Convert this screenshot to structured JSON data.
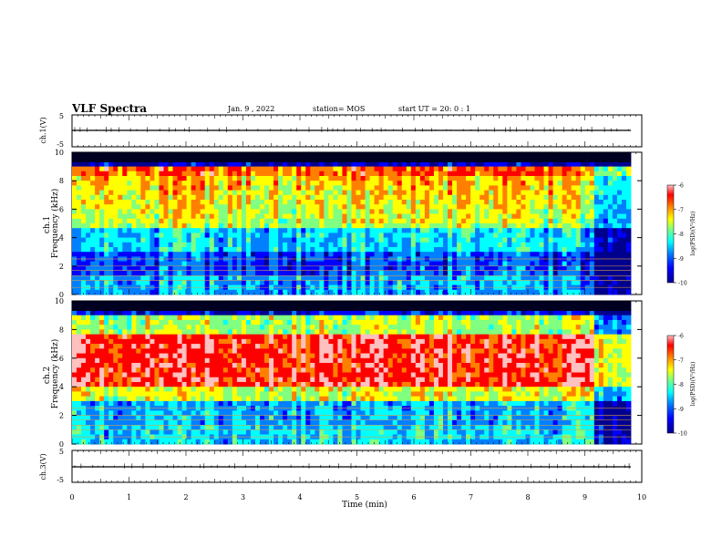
{
  "header": {
    "title": "VLF Spectra",
    "date": "Jan. 9 , 2022",
    "station": "station= MOS",
    "start_ut": "start UT =  20: 0 : 1"
  },
  "chart_data": [
    {
      "type": "line",
      "id": "ch1-voltage",
      "ylabel": "ch.1(V)",
      "ylim": [
        -5,
        5
      ],
      "yticks": [
        "5",
        "-5"
      ],
      "xlim": [
        0,
        10
      ],
      "series": [
        {
          "x": [
            0,
            9.8
          ],
          "values": [
            0,
            0
          ]
        }
      ]
    },
    {
      "type": "heatmap",
      "id": "ch1-spectrogram",
      "ylabel": "ch.1 Frequency (kHz)",
      "ylim": [
        0,
        10
      ],
      "yticks": [
        "0",
        "2",
        "4",
        "6",
        "8",
        "10"
      ],
      "xlim": [
        0,
        10
      ],
      "colorbar": {
        "label": "log(PSD)(V²/Hz)",
        "range": [
          -10,
          -6
        ],
        "ticks": [
          "-6",
          "-7",
          "-8",
          "-9",
          "-10"
        ]
      }
    },
    {
      "type": "heatmap",
      "id": "ch2-spectrogram",
      "ylabel": "ch.2 Frequency (kHz)",
      "ylim": [
        0,
        10
      ],
      "yticks": [
        "0",
        "2",
        "4",
        "6",
        "8",
        "10"
      ],
      "xlim": [
        0,
        10
      ],
      "colorbar": {
        "label": "log(PSD)(V²/Hz)",
        "range": [
          -10,
          -6
        ],
        "ticks": [
          "-6",
          "-7",
          "-8",
          "-9",
          "-10"
        ]
      }
    },
    {
      "type": "line",
      "id": "ch3-voltage",
      "ylabel": "ch.3(V)",
      "ylim": [
        -5,
        5
      ],
      "yticks": [
        "5",
        "-5"
      ],
      "xlim": [
        0,
        10
      ],
      "series": [
        {
          "x": [
            0,
            9.8
          ],
          "values": [
            0,
            0
          ]
        }
      ]
    }
  ],
  "xaxis": {
    "label": "Time (min)",
    "ticks": [
      "0",
      "1",
      "2",
      "3",
      "4",
      "5",
      "6",
      "7",
      "8",
      "9",
      "10"
    ]
  },
  "colors": {
    "jet": [
      "#00008f",
      "#0000ff",
      "#0080ff",
      "#00ffff",
      "#80ff80",
      "#ffff00",
      "#ff8000",
      "#ff0000",
      "#ffc0c0"
    ]
  }
}
